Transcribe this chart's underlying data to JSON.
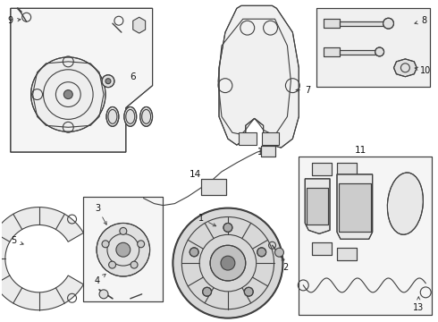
{
  "background_color": "#ffffff",
  "line_color": "#404040",
  "line_width": 0.8,
  "figsize": [
    4.9,
    3.6
  ],
  "dpi": 100
}
